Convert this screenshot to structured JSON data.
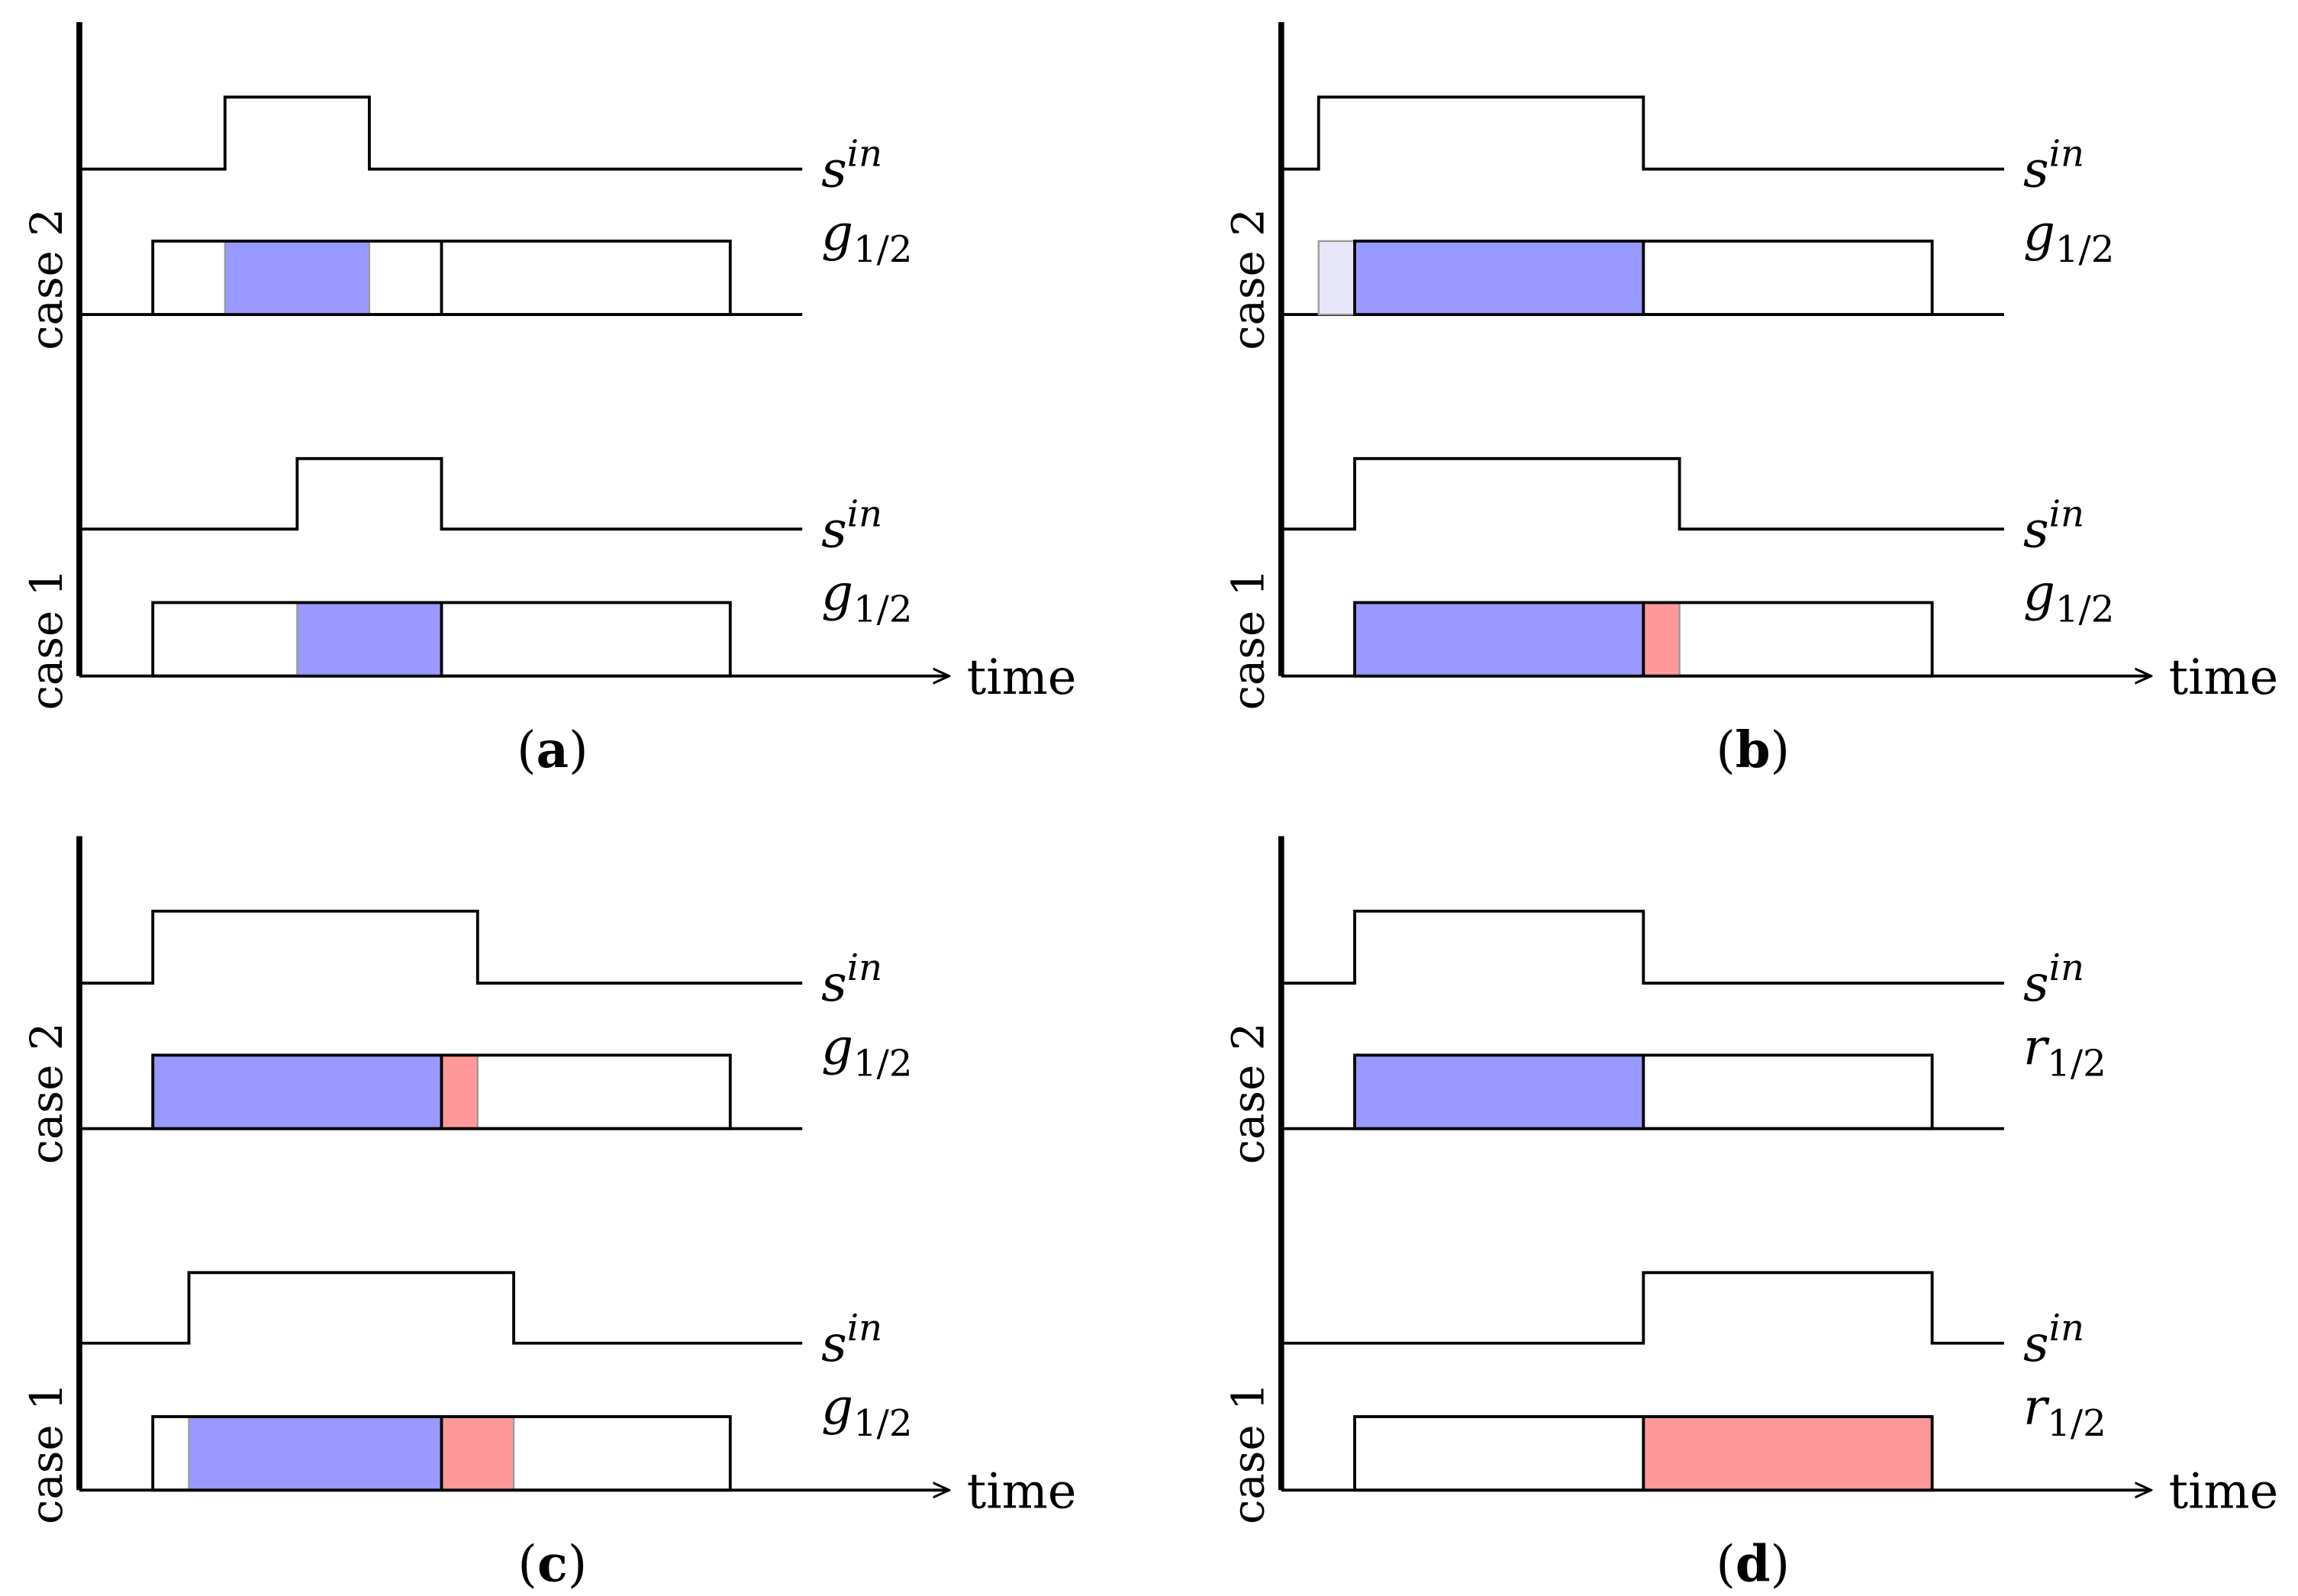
{
  "colors": {
    "blue": "#9999ff",
    "light_blue": "#e6e6f8",
    "red": "#ff9999",
    "edge": "#999999"
  },
  "axis_label": "time",
  "panels": [
    {
      "caption": "a",
      "cases": [
        {
          "label": "case 2",
          "signal": {
            "name": "s",
            "sup": "in",
            "pulse": [
              0.25,
              0.75
            ]
          },
          "gate": {
            "name": "g",
            "sub": "1/2",
            "regions": [
              {
                "start": 0.25,
                "end": 0.75,
                "color": "blue"
              }
            ]
          }
        },
        {
          "label": "case 1",
          "signal": {
            "name": "s",
            "sup": "in",
            "pulse": [
              0.5,
              1.0
            ]
          },
          "gate": {
            "name": "g",
            "sub": "1/2",
            "regions": [
              {
                "start": 0.5,
                "end": 1.0,
                "color": "blue"
              }
            ]
          }
        }
      ]
    },
    {
      "caption": "b",
      "cases": [
        {
          "label": "case 2",
          "signal": {
            "name": "s",
            "sup": "in",
            "pulse": [
              -0.125,
              1.0
            ]
          },
          "gate": {
            "name": "g",
            "sub": "1/2",
            "regions": [
              {
                "start": -0.125,
                "end": 0.0,
                "color": "light_blue"
              },
              {
                "start": 0.0,
                "end": 1.0,
                "color": "blue"
              }
            ]
          }
        },
        {
          "label": "case 1",
          "signal": {
            "name": "s",
            "sup": "in",
            "pulse": [
              0.0,
              1.125
            ]
          },
          "gate": {
            "name": "g",
            "sub": "1/2",
            "regions": [
              {
                "start": 0.0,
                "end": 1.0,
                "color": "blue"
              },
              {
                "start": 1.0,
                "end": 1.125,
                "color": "red"
              }
            ]
          }
        }
      ]
    },
    {
      "caption": "c",
      "cases": [
        {
          "label": "case 2",
          "signal": {
            "name": "s",
            "sup": "in",
            "pulse": [
              0.0,
              1.125
            ]
          },
          "gate": {
            "name": "g",
            "sub": "1/2",
            "regions": [
              {
                "start": 0.0,
                "end": 1.0,
                "color": "blue"
              },
              {
                "start": 1.0,
                "end": 1.125,
                "color": "red"
              }
            ]
          }
        },
        {
          "label": "case 1",
          "signal": {
            "name": "s",
            "sup": "in",
            "pulse": [
              0.125,
              1.25
            ]
          },
          "gate": {
            "name": "g",
            "sub": "1/2",
            "regions": [
              {
                "start": 0.125,
                "end": 1.0,
                "color": "blue"
              },
              {
                "start": 1.0,
                "end": 1.25,
                "color": "red"
              }
            ]
          }
        }
      ]
    },
    {
      "caption": "d",
      "cases": [
        {
          "label": "case 2",
          "signal": {
            "name": "s",
            "sup": "in",
            "pulse": [
              0.0,
              1.0
            ]
          },
          "gate": {
            "name": "r",
            "sub": "1/2",
            "regions": [
              {
                "start": 0.0,
                "end": 1.0,
                "color": "blue"
              }
            ]
          }
        },
        {
          "label": "case 1",
          "signal": {
            "name": "s",
            "sup": "in",
            "pulse": [
              1.0,
              2.0
            ]
          },
          "gate": {
            "name": "r",
            "sub": "1/2",
            "regions": [
              {
                "start": 1.0,
                "end": 2.0,
                "color": "red"
              }
            ]
          }
        }
      ]
    }
  ]
}
